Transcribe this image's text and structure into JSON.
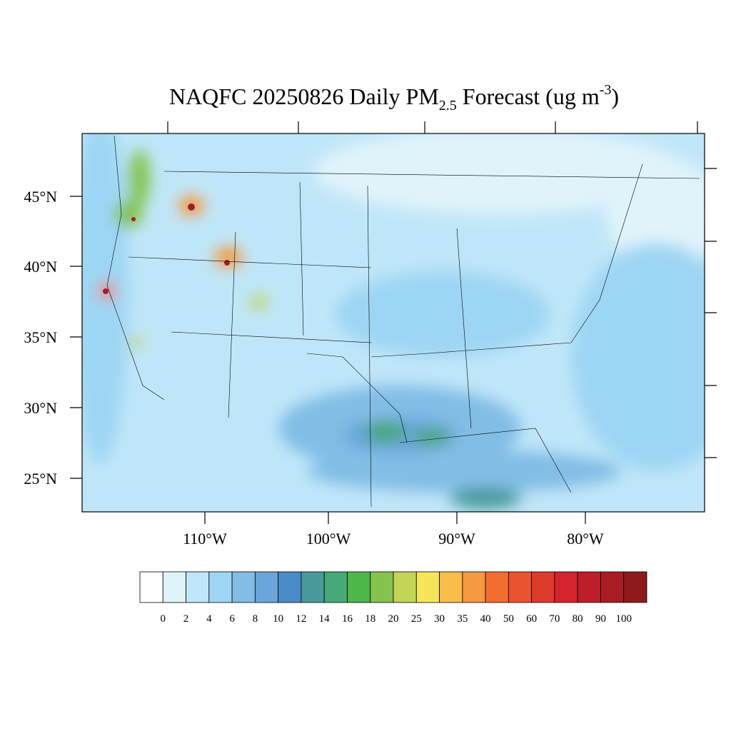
{
  "map": {
    "title": {
      "main": "NAQFC 20250826 Daily PM",
      "sub": "2.5",
      "middle": " Forecast (ug m",
      "sup": "-3",
      "end": ")"
    },
    "lat_labels": [
      "45°N",
      "40°N",
      "35°N",
      "30°N",
      "25°N"
    ],
    "lon_labels": [
      "110°W",
      "100°W",
      "90°W",
      "80°W"
    ],
    "colorbar": {
      "levels": [
        0,
        2,
        4,
        6,
        8,
        10,
        12,
        14,
        16,
        18,
        20,
        25,
        30,
        35,
        40,
        50,
        60,
        70,
        80,
        90,
        100
      ],
      "colors": [
        "#ffffff",
        "#e0f3fb",
        "#bfe6f8",
        "#9dd6f4",
        "#82bde6",
        "#6aa6db",
        "#4a8cc8",
        "#4a9a9c",
        "#46a876",
        "#4db74a",
        "#84c44e",
        "#c3d455",
        "#f6e55a",
        "#f9be4a",
        "#f6983d",
        "#f36d30",
        "#ea5230",
        "#de3a2b",
        "#d4232c",
        "#bd1f2a",
        "#a81c24",
        "#8e1a1d"
      ]
    }
  }
}
